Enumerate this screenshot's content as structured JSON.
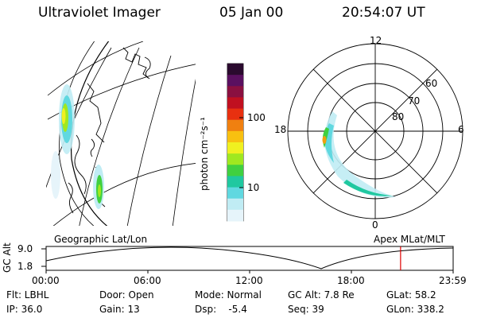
{
  "header": {
    "title": "Ultraviolet Imager",
    "date": "05 Jan 00",
    "time": "20:54:07 UT"
  },
  "colorbar": {
    "unit_label": "photon cm⁻²s⁻¹",
    "ticks": [
      "100",
      "10"
    ],
    "colors": [
      "#2a0a2e",
      "#5a1060",
      "#8a1040",
      "#c01020",
      "#e83010",
      "#f08010",
      "#f8c010",
      "#f0f020",
      "#a0e820",
      "#40d040",
      "#20c8a0",
      "#60d8e0",
      "#c0ecf4",
      "#e6f4fa"
    ]
  },
  "left_panel": {
    "caption": "Geographic Lat/Lon"
  },
  "right_panel": {
    "caption": "Apex MLat/MLT",
    "lat_labels": [
      "60",
      "70",
      "80"
    ],
    "mlt_labels": {
      "top": "12",
      "left": "18",
      "right": "6",
      "bottom": "0"
    }
  },
  "timeline": {
    "axis_label": "GC Alt",
    "y_ticks": [
      "9.0",
      "1.8"
    ],
    "x_ticks": [
      "00:00",
      "06:00",
      "12:00",
      "18:00",
      "23:59"
    ],
    "marker_hours": 20.9,
    "marker_color": "#e00000"
  },
  "info": {
    "row1": [
      "Flt: LBHL",
      "Door: Open",
      "Mode: Normal",
      "GC Alt: 7.8 Re",
      "GLat: 58.2"
    ],
    "row2": [
      "IP: 36.0",
      "Gain: 13",
      "Dsp:    -5.4",
      "Seq: 39",
      "GLon: 338.2"
    ]
  }
}
